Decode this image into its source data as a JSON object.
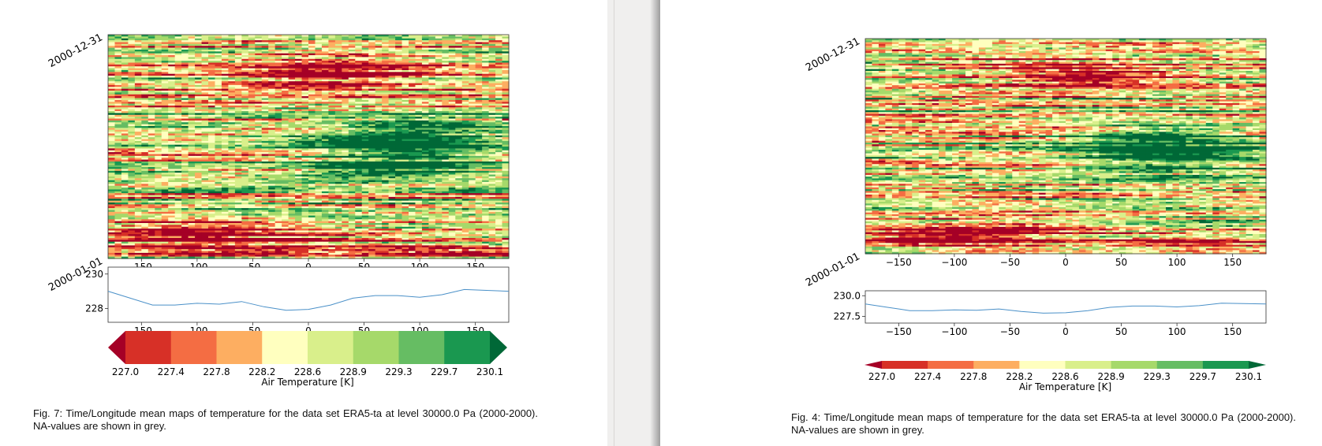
{
  "chart_data": [
    {
      "type": "heatmap",
      "figure_label": "Fig. 7:",
      "caption": "Time/Longitude mean maps of temperature for the data set ERA5-ta at level 30000.0 Pa (2000-2000). NA-values are shown in grey.",
      "ylabels": [
        "2000-12-31",
        "2000-01-01"
      ],
      "xticks": [
        -150,
        -100,
        -50,
        0,
        50,
        100,
        150
      ],
      "xtick_labels": [
        "-150",
        "-100",
        "-50",
        "0",
        "50",
        "100",
        "150"
      ],
      "xlim": [
        -180,
        180
      ],
      "profile": {
        "type": "line",
        "yticks": [
          228,
          230
        ],
        "ytick_labels": [
          "228",
          "230"
        ],
        "ylim": [
          227.2,
          230.4
        ],
        "x": [
          -180,
          -160,
          -140,
          -120,
          -100,
          -80,
          -60,
          -40,
          -20,
          0,
          20,
          40,
          60,
          80,
          100,
          120,
          140,
          160,
          180
        ],
        "y": [
          229.0,
          228.6,
          228.2,
          228.2,
          228.3,
          228.25,
          228.4,
          228.1,
          227.9,
          227.95,
          228.2,
          228.6,
          228.75,
          228.75,
          228.65,
          228.8,
          229.1,
          229.05,
          229.0
        ]
      },
      "colorbar": {
        "label": "Air Temperature [K]",
        "tick_labels": [
          "227.0",
          "227.4",
          "227.8",
          "228.2",
          "228.6",
          "228.9",
          "229.3",
          "229.7",
          "230.1"
        ],
        "colors": [
          "#d73027",
          "#f46d43",
          "#fdae61",
          "#ffffbf",
          "#d9ef8b",
          "#a6d96a",
          "#66bd63",
          "#1a9850"
        ],
        "extend_low": "#a50026",
        "extend_high": "#006837"
      }
    },
    {
      "type": "heatmap",
      "figure_label": "Fig. 4:",
      "caption": "Time/Longitude mean maps of temperature for the data set ERA5-ta at level 30000.0 Pa (2000-2000). NA-values are shown in grey.",
      "ylabels": [
        "2000-12-31",
        "2000-01-01"
      ],
      "xticks": [
        -150,
        -100,
        -50,
        0,
        50,
        100,
        150
      ],
      "xtick_labels": [
        "−150",
        "−100",
        "−50",
        "0",
        "50",
        "100",
        "150"
      ],
      "xlim": [
        -180,
        180
      ],
      "profile": {
        "type": "line",
        "yticks": [
          227.5,
          230.0
        ],
        "ytick_labels": [
          "227.5",
          "230.0"
        ],
        "ylim": [
          226.7,
          230.6
        ],
        "x": [
          -180,
          -160,
          -140,
          -120,
          -100,
          -80,
          -60,
          -40,
          -20,
          0,
          20,
          40,
          60,
          80,
          100,
          120,
          140,
          160,
          180
        ],
        "y": [
          229.0,
          228.6,
          228.2,
          228.2,
          228.3,
          228.25,
          228.4,
          228.1,
          227.9,
          227.95,
          228.2,
          228.6,
          228.75,
          228.75,
          228.65,
          228.8,
          229.1,
          229.05,
          229.0
        ]
      },
      "colorbar": {
        "label": "Air Temperature [K]",
        "tick_labels": [
          "227.0",
          "227.4",
          "227.8",
          "228.2",
          "228.6",
          "228.9",
          "229.3",
          "229.7",
          "230.1"
        ],
        "colors": [
          "#d73027",
          "#f46d43",
          "#fdae61",
          "#ffffbf",
          "#d9ef8b",
          "#a6d96a",
          "#66bd63",
          "#1a9850"
        ],
        "extend_low": "#a50026",
        "extend_high": "#006837"
      }
    }
  ]
}
